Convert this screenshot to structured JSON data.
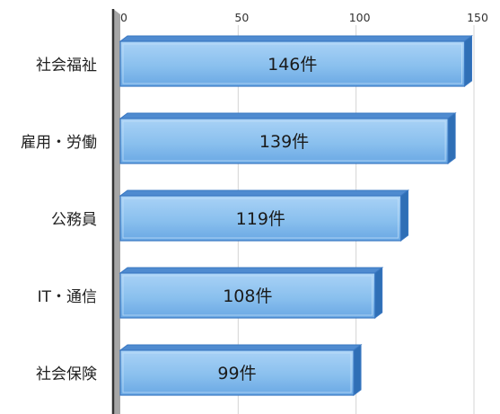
{
  "chart_data": {
    "type": "bar",
    "orientation": "horizontal",
    "style": "3d",
    "title": "",
    "xlabel": "",
    "ylabel": "",
    "categories": [
      "社会福祉",
      "雇用・労働",
      "公務員",
      "IT・通信",
      "社会保険"
    ],
    "values": [
      146,
      139,
      119,
      108,
      99
    ],
    "data_labels": [
      "146件",
      "139件",
      "119件",
      "108件",
      "99件"
    ],
    "value_suffix": "件",
    "xlim": [
      0,
      150
    ],
    "ticks": [
      "0",
      "50",
      "100",
      "150"
    ],
    "tick_values": [
      0,
      50,
      100,
      150
    ],
    "tick_position": "top",
    "grid": true,
    "legend": "none",
    "colors": {
      "bar_face": "#8cc0ee",
      "bar_top": "#4f8bd0",
      "bar_side": "#2f6fb6",
      "bar_edge": "#3a78c2",
      "wall": "#a6a6a6",
      "axis": "#333333",
      "grid": "#d4d4d4"
    }
  }
}
